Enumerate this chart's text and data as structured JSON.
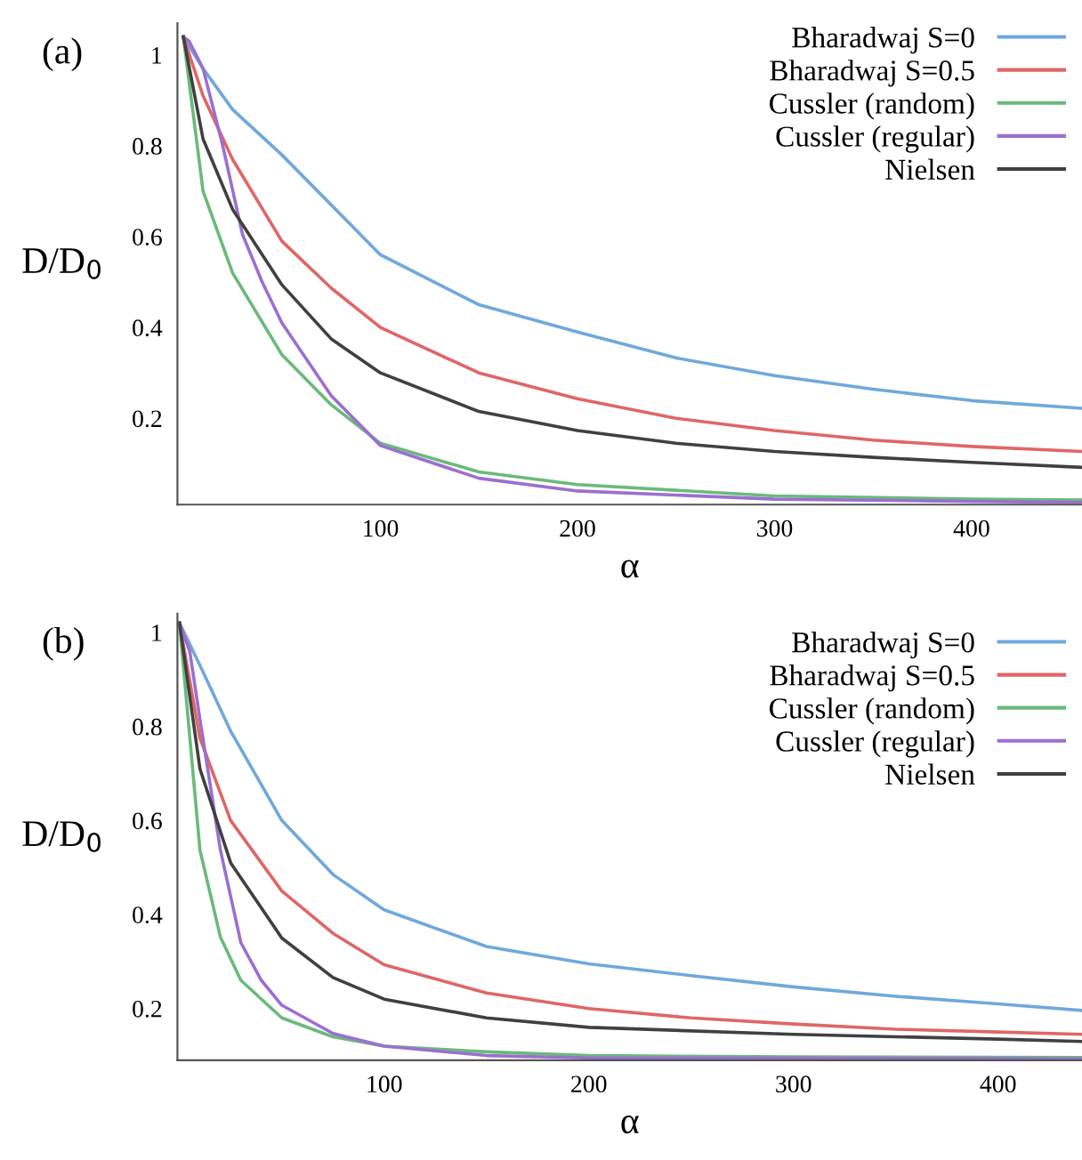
{
  "chart_data": [
    {
      "type": "line",
      "xlabel": "α",
      "ylabel": "D/D$_{0}$",
      "annotations": [
        "(a)"
      ],
      "xlim": [
        -3,
        456
      ],
      "ylim": [
        0.01,
        1.07
      ],
      "xticks": [
        100,
        200,
        300,
        400
      ],
      "yticks": [
        0.2,
        0.4,
        0.6,
        0.8,
        1
      ],
      "grid": false,
      "legend": "top right",
      "marker": "none",
      "line_style": "solid",
      "series": [
        {
          "name": "Bharadwaj S=0",
          "color": "#6fa8dc",
          "x": [
            0,
            10,
            25,
            50,
            100,
            150,
            200,
            250,
            300,
            350,
            400,
            456
          ],
          "values": [
            1.04,
            0.97,
            0.88,
            0.78,
            0.56,
            0.45,
            0.39,
            0.333,
            0.294,
            0.264,
            0.239,
            0.222
          ]
        },
        {
          "name": "Bharadwaj S=0.5",
          "color": "#e06666",
          "x": [
            0,
            10,
            25,
            50,
            75,
            100,
            150,
            200,
            250,
            300,
            350,
            400,
            456
          ],
          "values": [
            1.04,
            0.91,
            0.77,
            0.59,
            0.487,
            0.4,
            0.3,
            0.243,
            0.2,
            0.173,
            0.152,
            0.138,
            0.127
          ]
        },
        {
          "name": "Cussler (random)",
          "color": "#6aba7a",
          "x": [
            0,
            10,
            25,
            50,
            75,
            100,
            150,
            200,
            300,
            400,
            456
          ],
          "values": [
            1.04,
            0.7,
            0.52,
            0.34,
            0.23,
            0.145,
            0.082,
            0.054,
            0.029,
            0.022,
            0.02
          ]
        },
        {
          "name": "Cussler (regular)",
          "color": "#9b6fd0",
          "x": [
            0,
            3,
            10,
            20,
            30,
            40,
            50,
            75,
            100,
            150,
            200,
            300,
            400,
            456
          ],
          "values": [
            1.04,
            1.03,
            0.97,
            0.8,
            0.605,
            0.5,
            0.41,
            0.25,
            0.14,
            0.068,
            0.04,
            0.022,
            0.017,
            0.015
          ]
        },
        {
          "name": "Nielsen",
          "color": "#404040",
          "x": [
            0,
            10,
            25,
            50,
            75,
            100,
            150,
            200,
            250,
            300,
            350,
            400,
            456
          ],
          "values": [
            1.04,
            0.815,
            0.66,
            0.494,
            0.375,
            0.3,
            0.215,
            0.173,
            0.145,
            0.127,
            0.114,
            0.103,
            0.092
          ]
        }
      ]
    },
    {
      "type": "line",
      "xlabel": "α",
      "ylabel": "D/D$_{0}$",
      "annotations": [
        "(b)"
      ],
      "xlim": [
        -1,
        441
      ],
      "ylim": [
        0.09,
        1.04
      ],
      "xticks": [
        100,
        200,
        300,
        400
      ],
      "yticks": [
        0.2,
        0.4,
        0.6,
        0.8,
        1
      ],
      "grid": false,
      "legend": "top right",
      "marker": "none",
      "line_style": "solid",
      "series": [
        {
          "name": "Bharadwaj S=0",
          "color": "#6fa8dc",
          "x": [
            0,
            10,
            25,
            50,
            75,
            100,
            150,
            200,
            250,
            300,
            350,
            400,
            441
          ],
          "values": [
            1.02,
            0.93,
            0.79,
            0.6,
            0.485,
            0.41,
            0.332,
            0.295,
            0.27,
            0.246,
            0.226,
            0.21,
            0.196
          ]
        },
        {
          "name": "Bharadwaj S=0.5",
          "color": "#e06666",
          "x": [
            0,
            10,
            25,
            50,
            75,
            100,
            150,
            200,
            250,
            300,
            350,
            400,
            441
          ],
          "values": [
            1.02,
            0.775,
            0.6,
            0.45,
            0.36,
            0.293,
            0.233,
            0.2,
            0.18,
            0.167,
            0.156,
            0.15,
            0.145
          ]
        },
        {
          "name": "Cussler (random)",
          "color": "#6aba7a",
          "x": [
            0,
            10,
            20,
            30,
            50,
            75,
            100,
            150,
            200,
            300,
            441
          ],
          "values": [
            1.02,
            0.537,
            0.352,
            0.26,
            0.18,
            0.14,
            0.12,
            0.108,
            0.1,
            0.097,
            0.096
          ]
        },
        {
          "name": "Cussler (regular)",
          "color": "#9b6fd0",
          "x": [
            0,
            5,
            10,
            20,
            30,
            40,
            50,
            75,
            100,
            150,
            200,
            441
          ],
          "values": [
            1.02,
            0.96,
            0.815,
            0.537,
            0.34,
            0.26,
            0.207,
            0.147,
            0.12,
            0.1,
            0.095,
            0.093
          ]
        },
        {
          "name": "Nielsen",
          "color": "#404040",
          "x": [
            0,
            10,
            25,
            50,
            75,
            100,
            150,
            200,
            300,
            400,
            441
          ],
          "values": [
            1.02,
            0.71,
            0.51,
            0.35,
            0.266,
            0.22,
            0.18,
            0.16,
            0.145,
            0.135,
            0.13
          ]
        }
      ]
    }
  ]
}
